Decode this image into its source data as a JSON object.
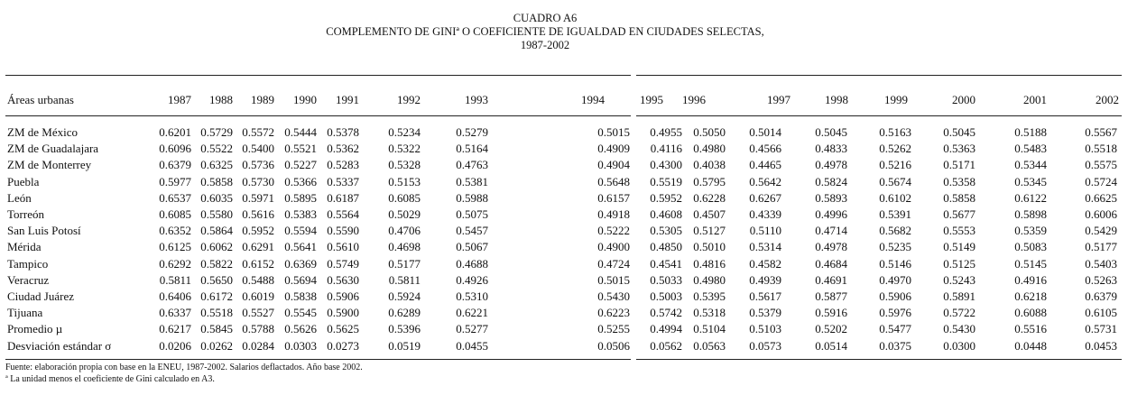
{
  "header": {
    "number": "CUADRO A6",
    "title": "COMPLEMENTO DE GINIª O COEFICIENTE DE IGUALDAD EN CIUDADES SELECTAS,",
    "period": "1987-2002"
  },
  "table": {
    "columns": [
      "Áreas urbanas",
      "1987",
      "1988",
      "1989",
      "1990",
      "1991",
      "1992",
      "1993",
      "1994",
      "1995",
      "1996",
      "1997",
      "1998",
      "1999",
      "2000",
      "2001",
      "2002"
    ],
    "rows": [
      [
        "ZM de México",
        "0.6201",
        "0.5729",
        "0.5572",
        "0.5444",
        "0.5378",
        "0.5234",
        "0.5279",
        "0.5015",
        "0.4955",
        "0.5050",
        "0.5014",
        "0.5045",
        "0.5163",
        "0.5045",
        "0.5188",
        "0.5567"
      ],
      [
        "ZM de Guadalajara",
        "0.6096",
        "0.5522",
        "0.5400",
        "0.5521",
        "0.5362",
        "0.5322",
        "0.5164",
        "0.4909",
        "0.4116",
        "0.4980",
        "0.4566",
        "0.4833",
        "0.5262",
        "0.5363",
        "0.5483",
        "0.5518"
      ],
      [
        "ZM de Monterrey",
        "0.6379",
        "0.6325",
        "0.5736",
        "0.5227",
        "0.5283",
        "0.5328",
        "0.4763",
        "0.4904",
        "0.4300",
        "0.4038",
        "0.4465",
        "0.4978",
        "0.5216",
        "0.5171",
        "0.5344",
        "0.5575"
      ],
      [
        "Puebla",
        "0.5977",
        "0.5858",
        "0.5730",
        "0.5366",
        "0.5337",
        "0.5153",
        "0.5381",
        "0.5648",
        "0.5519",
        "0.5795",
        "0.5642",
        "0.5824",
        "0.5674",
        "0.5358",
        "0.5345",
        "0.5724"
      ],
      [
        "León",
        "0.6537",
        "0.6035",
        "0.5971",
        "0.5895",
        "0.6187",
        "0.6085",
        "0.5988",
        "0.6157",
        "0.5952",
        "0.6228",
        "0.6267",
        "0.5893",
        "0.6102",
        "0.5858",
        "0.6122",
        "0.6625"
      ],
      [
        "Torreón",
        "0.6085",
        "0.5580",
        "0.5616",
        "0.5383",
        "0.5564",
        "0.5029",
        "0.5075",
        "0.4918",
        "0.4608",
        "0.4507",
        "0.4339",
        "0.4996",
        "0.5391",
        "0.5677",
        "0.5898",
        "0.6006"
      ],
      [
        "San Luis Potosí",
        "0.6352",
        "0.5864",
        "0.5952",
        "0.5594",
        "0.5590",
        "0.4706",
        "0.5457",
        "0.5222",
        "0.5305",
        "0.5127",
        "0.5110",
        "0.4714",
        "0.5682",
        "0.5553",
        "0.5359",
        "0.5429"
      ],
      [
        "Mérida",
        "0.6125",
        "0.6062",
        "0.6291",
        "0.5641",
        "0.5610",
        "0.4698",
        "0.5067",
        "0.4900",
        "0.4850",
        "0.5010",
        "0.5314",
        "0.4978",
        "0.5235",
        "0.5149",
        "0.5083",
        "0.5177"
      ],
      [
        "Tampico",
        "0.6292",
        "0.5822",
        "0.6152",
        "0.6369",
        "0.5749",
        "0.5177",
        "0.4688",
        "0.4724",
        "0.4541",
        "0.4816",
        "0.4582",
        "0.4684",
        "0.5146",
        "0.5125",
        "0.5145",
        "0.5403"
      ],
      [
        "Veracruz",
        "0.5811",
        "0.5650",
        "0.5488",
        "0.5694",
        "0.5630",
        "0.5811",
        "0.4926",
        "0.5015",
        "0.5033",
        "0.4980",
        "0.4939",
        "0.4691",
        "0.4970",
        "0.5243",
        "0.4916",
        "0.5263"
      ],
      [
        "Ciudad Juárez",
        "0.6406",
        "0.6172",
        "0.6019",
        "0.5838",
        "0.5906",
        "0.5924",
        "0.5310",
        "0.5430",
        "0.5003",
        "0.5395",
        "0.5617",
        "0.5877",
        "0.5906",
        "0.5891",
        "0.6218",
        "0.6379"
      ],
      [
        "Tijuana",
        "0.6337",
        "0.5518",
        "0.5527",
        "0.5545",
        "0.5900",
        "0.6289",
        "0.6221",
        "0.6223",
        "0.5742",
        "0.5318",
        "0.5379",
        "0.5916",
        "0.5976",
        "0.5722",
        "0.6088",
        "0.6105"
      ],
      [
        "Promedio µ",
        "0.6217",
        "0.5845",
        "0.5788",
        "0.5626",
        "0.5625",
        "0.5396",
        "0.5277",
        "0.5255",
        "0.4994",
        "0.5104",
        "0.5103",
        "0.5202",
        "0.5477",
        "0.5430",
        "0.5516",
        "0.5731"
      ],
      [
        "Desviación estándar σ",
        "0.0206",
        "0.0262",
        "0.0284",
        "0.0303",
        "0.0273",
        "0.0519",
        "0.0455",
        "0.0506",
        "0.0562",
        "0.0563",
        "0.0573",
        "0.0514",
        "0.0375",
        "0.0300",
        "0.0448",
        "0.0453"
      ]
    ]
  },
  "notes": {
    "source": "Fuente: elaboración propia con base en la ENEU, 1987-2002. Salarios deflactados. Año base 2002.",
    "footnote": "ª La unidad menos el coeficiente de Gini calculado en A3."
  }
}
